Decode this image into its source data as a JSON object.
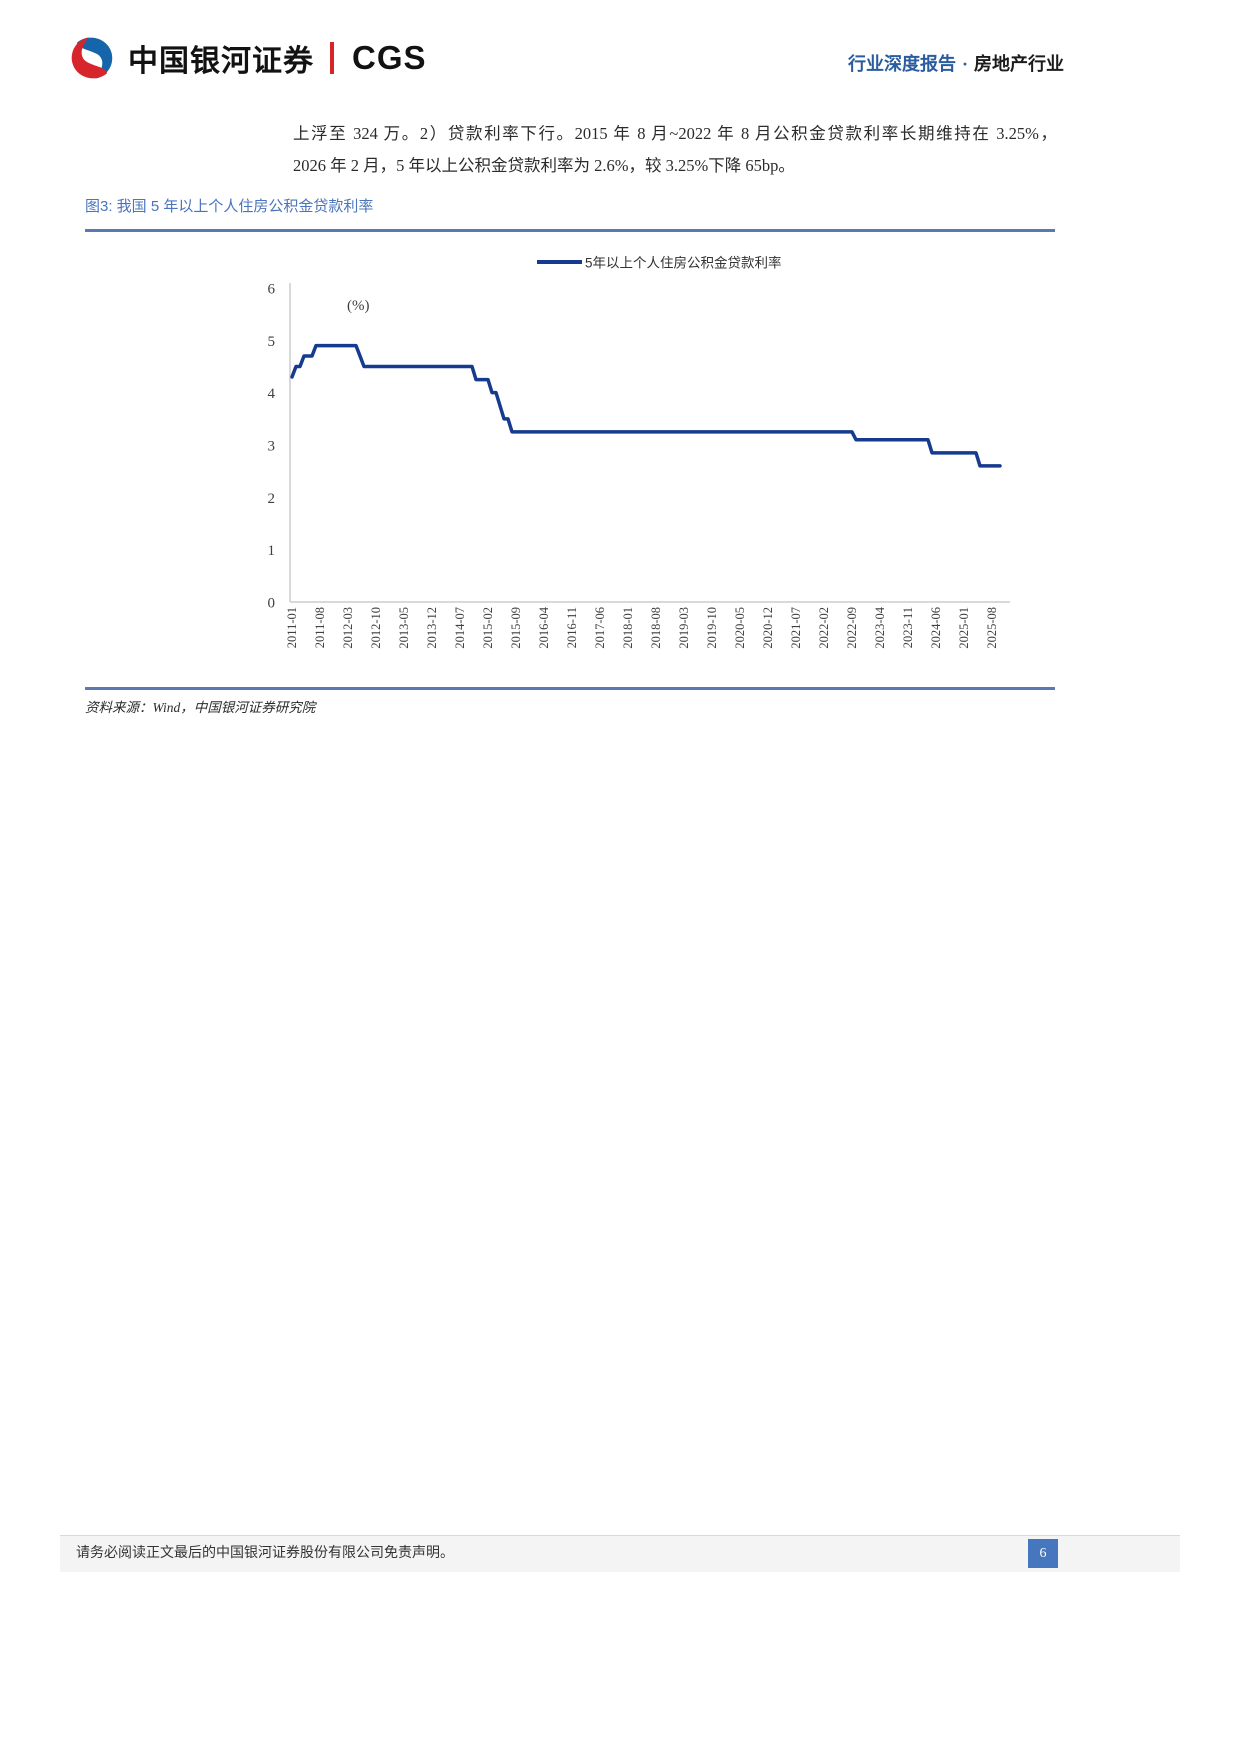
{
  "header": {
    "brand_cn": "中国银河证券",
    "brand_en": "CGS",
    "doc_type": "行业深度报告",
    "separator": "·",
    "industry": "房地产行业"
  },
  "body": {
    "line1": "上浮至 324 万。2）贷款利率下行。2015 年 8 月~2022 年 8 月公积金贷款利率长期维持在 3.25%，",
    "line2": "2026 年 2 月，5 年以上公积金贷款利率为 2.6%，较 3.25%下降 65bp。"
  },
  "figure": {
    "title": "图3: 我国 5 年以上个人住房公积金贷款利率",
    "source": "资料来源：Wind，中国银河证券研究院"
  },
  "chart_data": {
    "type": "line",
    "title": "我国5年以上个人住房公积金贷款利率",
    "legend": [
      "5年以上个人住房公积金贷款利率"
    ],
    "legend_position": "top",
    "unit_label": "(%)",
    "grid": false,
    "ylim": [
      0,
      6
    ],
    "yticks": [
      0,
      1,
      2,
      3,
      4,
      5,
      6
    ],
    "x_start": "2011-01",
    "x_end": "2025-10",
    "x_tick_labels": [
      "2011-01",
      "2011-08",
      "2012-03",
      "2012-10",
      "2013-05",
      "2013-12",
      "2014-07",
      "2015-02",
      "2015-09",
      "2016-04",
      "2016-11",
      "2017-06",
      "2018-01",
      "2018-08",
      "2019-03",
      "2019-10",
      "2020-05",
      "2020-12",
      "2021-07",
      "2022-02",
      "2022-09",
      "2023-04",
      "2023-11",
      "2024-06",
      "2025-01",
      "2025-08"
    ],
    "series": [
      {
        "name": "5年以上个人住房公积金贷款利率",
        "color": "#163a8e",
        "step_changes": [
          [
            "2011-01",
            4.3
          ],
          [
            "2011-02",
            4.5
          ],
          [
            "2011-04",
            4.7
          ],
          [
            "2011-07",
            4.9
          ],
          [
            "2012-06",
            4.7
          ],
          [
            "2012-07",
            4.5
          ],
          [
            "2014-11",
            4.25
          ],
          [
            "2015-03",
            4.0
          ],
          [
            "2015-05",
            3.75
          ],
          [
            "2015-06",
            3.5
          ],
          [
            "2015-08",
            3.25
          ],
          [
            "2022-10",
            3.1
          ],
          [
            "2024-05",
            2.85
          ],
          [
            "2025-05",
            2.6
          ]
        ]
      }
    ]
  },
  "footer": {
    "disclaimer": "请务必阅读正文最后的中国银河证券股份有限公司免责声明。",
    "page_number": "6"
  },
  "colors": {
    "accent_blue": "#5b79b0",
    "title_blue": "#4a74bc",
    "header_blue": "#2a5d9f",
    "line_navy": "#163a8e",
    "logo_blue": "#1565ab",
    "logo_red": "#d6262c",
    "badge_blue": "#4576be",
    "axis_gray": "#d9d9d9"
  }
}
